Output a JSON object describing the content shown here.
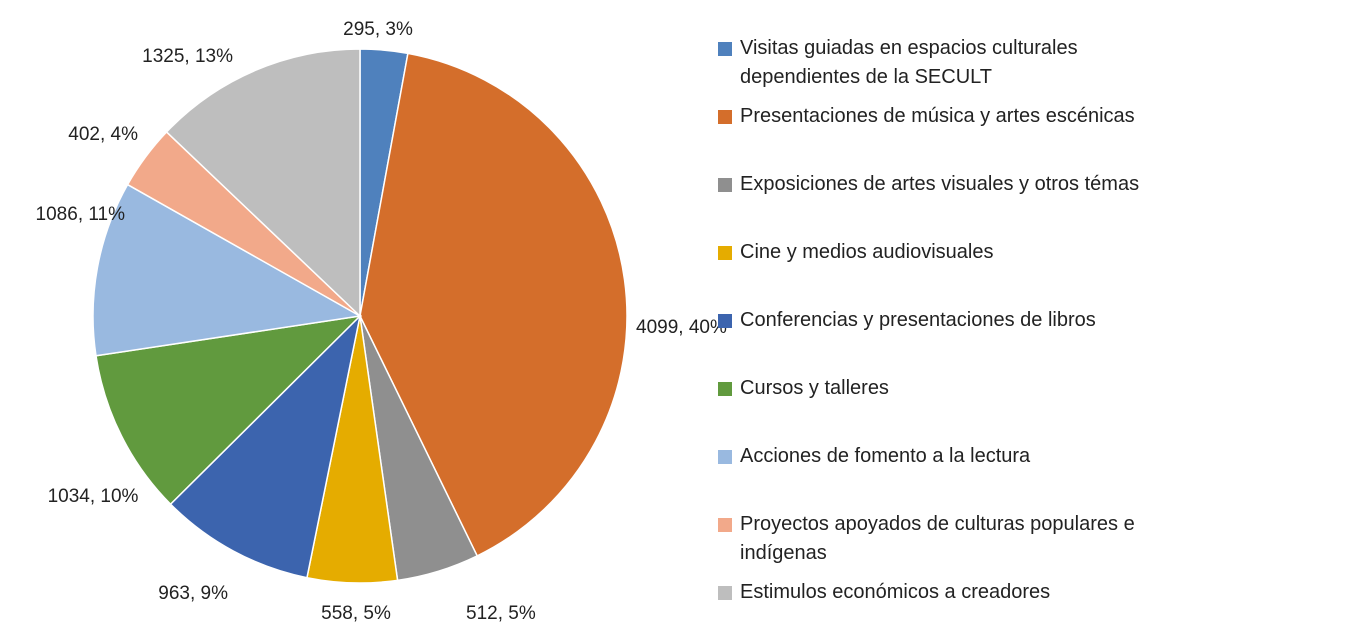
{
  "chart_data": {
    "type": "pie",
    "categories": [
      "Visitas guiadas en espacios culturales dependientes de la SECULT",
      "Presentaciones de música y artes escénicas",
      "Exposiciones de artes visuales y otros témas",
      "Cine y medios audiovisuales",
      "Conferencias y presentaciones de libros",
      "Cursos y talleres",
      "Acciones de fomento a la lectura",
      "Proyectos apoyados de culturas populares e indígenas",
      "Estimulos económicos a creadores"
    ],
    "values": [
      295,
      4099,
      512,
      558,
      963,
      1034,
      1086,
      402,
      1325
    ],
    "value_labels": [
      "295, 3%",
      "4099, 40%",
      "512, 5%",
      "558, 5%",
      "963, 9%",
      "1034, 10%",
      "1086, 11%",
      "402, 4%",
      "1325, 13%"
    ],
    "colors": [
      "#4f81bd",
      "#d46e2b",
      "#8f8f8f",
      "#e5ac00",
      "#3c64ae",
      "#619a3e",
      "#99b9e0",
      "#f2a98a",
      "#bebebe"
    ],
    "legend": "right"
  }
}
